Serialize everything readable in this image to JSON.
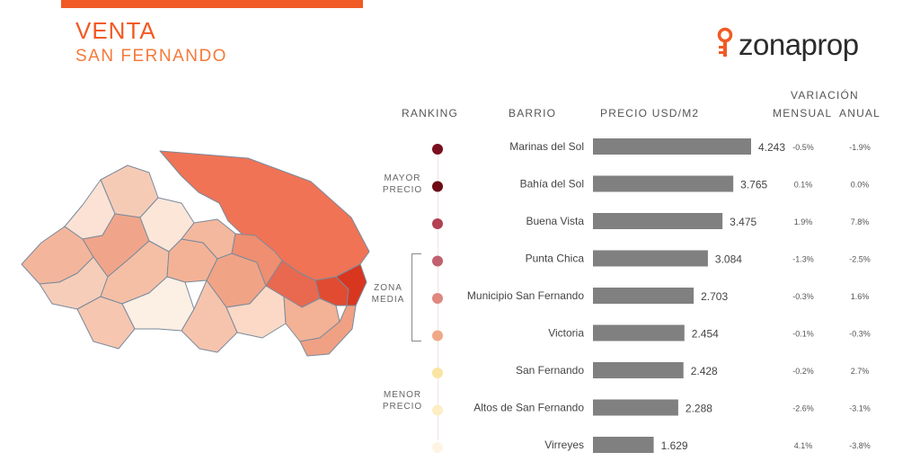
{
  "header": {
    "title": "VENTA",
    "subtitle": "SAN FERNANDO",
    "brand": "zonaprop",
    "brand_color": "#f15a24",
    "accent": "#f15a24"
  },
  "columns": {
    "ranking": "RANKING",
    "barrio": "BARRIO",
    "precio": "PRECIO USD/M2",
    "variacion": "VARIACIÓN",
    "mensual": "MENSUAL",
    "anual": "ANUAL"
  },
  "groups": {
    "mayor_1": "MAYOR",
    "mayor_2": "PRECIO",
    "zona_1": "ZONA",
    "zona_2": "MEDIA",
    "menor_1": "MENOR",
    "menor_2": "PRECIO"
  },
  "chart_data": {
    "type": "bar",
    "orientation": "horizontal",
    "bar_color": "#808080",
    "categories": [
      "Marinas del Sol",
      "Bahía del Sol",
      "Buena Vista",
      "Punta Chica",
      "Municipio San Fernando",
      "Victoria",
      "San Fernando",
      "Altos de San Fernando",
      "Virreyes"
    ],
    "values": [
      4243,
      3765,
      3475,
      3084,
      2703,
      2454,
      2428,
      2288,
      1629
    ],
    "value_labels": [
      "4.243",
      "3.765",
      "3.475",
      "3.084",
      "2.703",
      "2.454",
      "2.428",
      "2.288",
      "1.629"
    ],
    "mensual": [
      "-0.5%",
      "0.1%",
      "1.9%",
      "-1.3%",
      "-0.3%",
      "-0.1%",
      "-0.2%",
      "-2.6%",
      "4.1%"
    ],
    "anual": [
      "-1.9%",
      "0.0%",
      "7.8%",
      "-2.5%",
      "1.6%",
      "-0.3%",
      "2.7%",
      "-3.1%",
      "-3.8%"
    ],
    "rank_colors": [
      "#7a0f1e",
      "#6e0b14",
      "#b24152",
      "#c2606f",
      "#e0877f",
      "#f0a988",
      "#fbe3a3",
      "#fdeec6",
      "#fef4e3"
    ],
    "xlim": [
      0,
      4243
    ]
  }
}
